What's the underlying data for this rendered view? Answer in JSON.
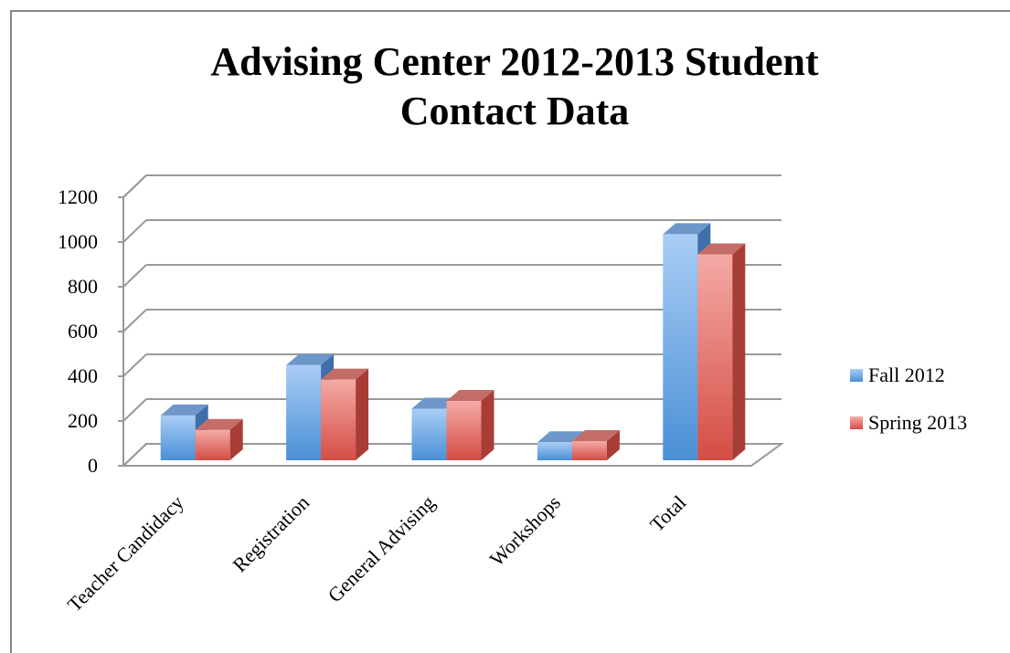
{
  "chart_data": {
    "type": "bar3d",
    "title_lines": [
      "Advising Center 2012-2013 Student",
      "Contact Data"
    ],
    "categories": [
      "Teacher Candidacy",
      "Registration",
      "General Advising",
      "Workshops",
      "Total"
    ],
    "series": [
      {
        "name": "Fall 2012",
        "color": "#4a90d9",
        "values": [
          225,
          450,
          255,
          105,
          1035
        ]
      },
      {
        "name": "Spring 2013",
        "color": "#d9534a",
        "values": [
          160,
          385,
          290,
          110,
          945
        ]
      }
    ],
    "ylim": [
      0,
      1200
    ],
    "yticks": [
      0,
      200,
      400,
      600,
      800,
      1000,
      1200
    ],
    "grid": true,
    "legend": "right"
  }
}
